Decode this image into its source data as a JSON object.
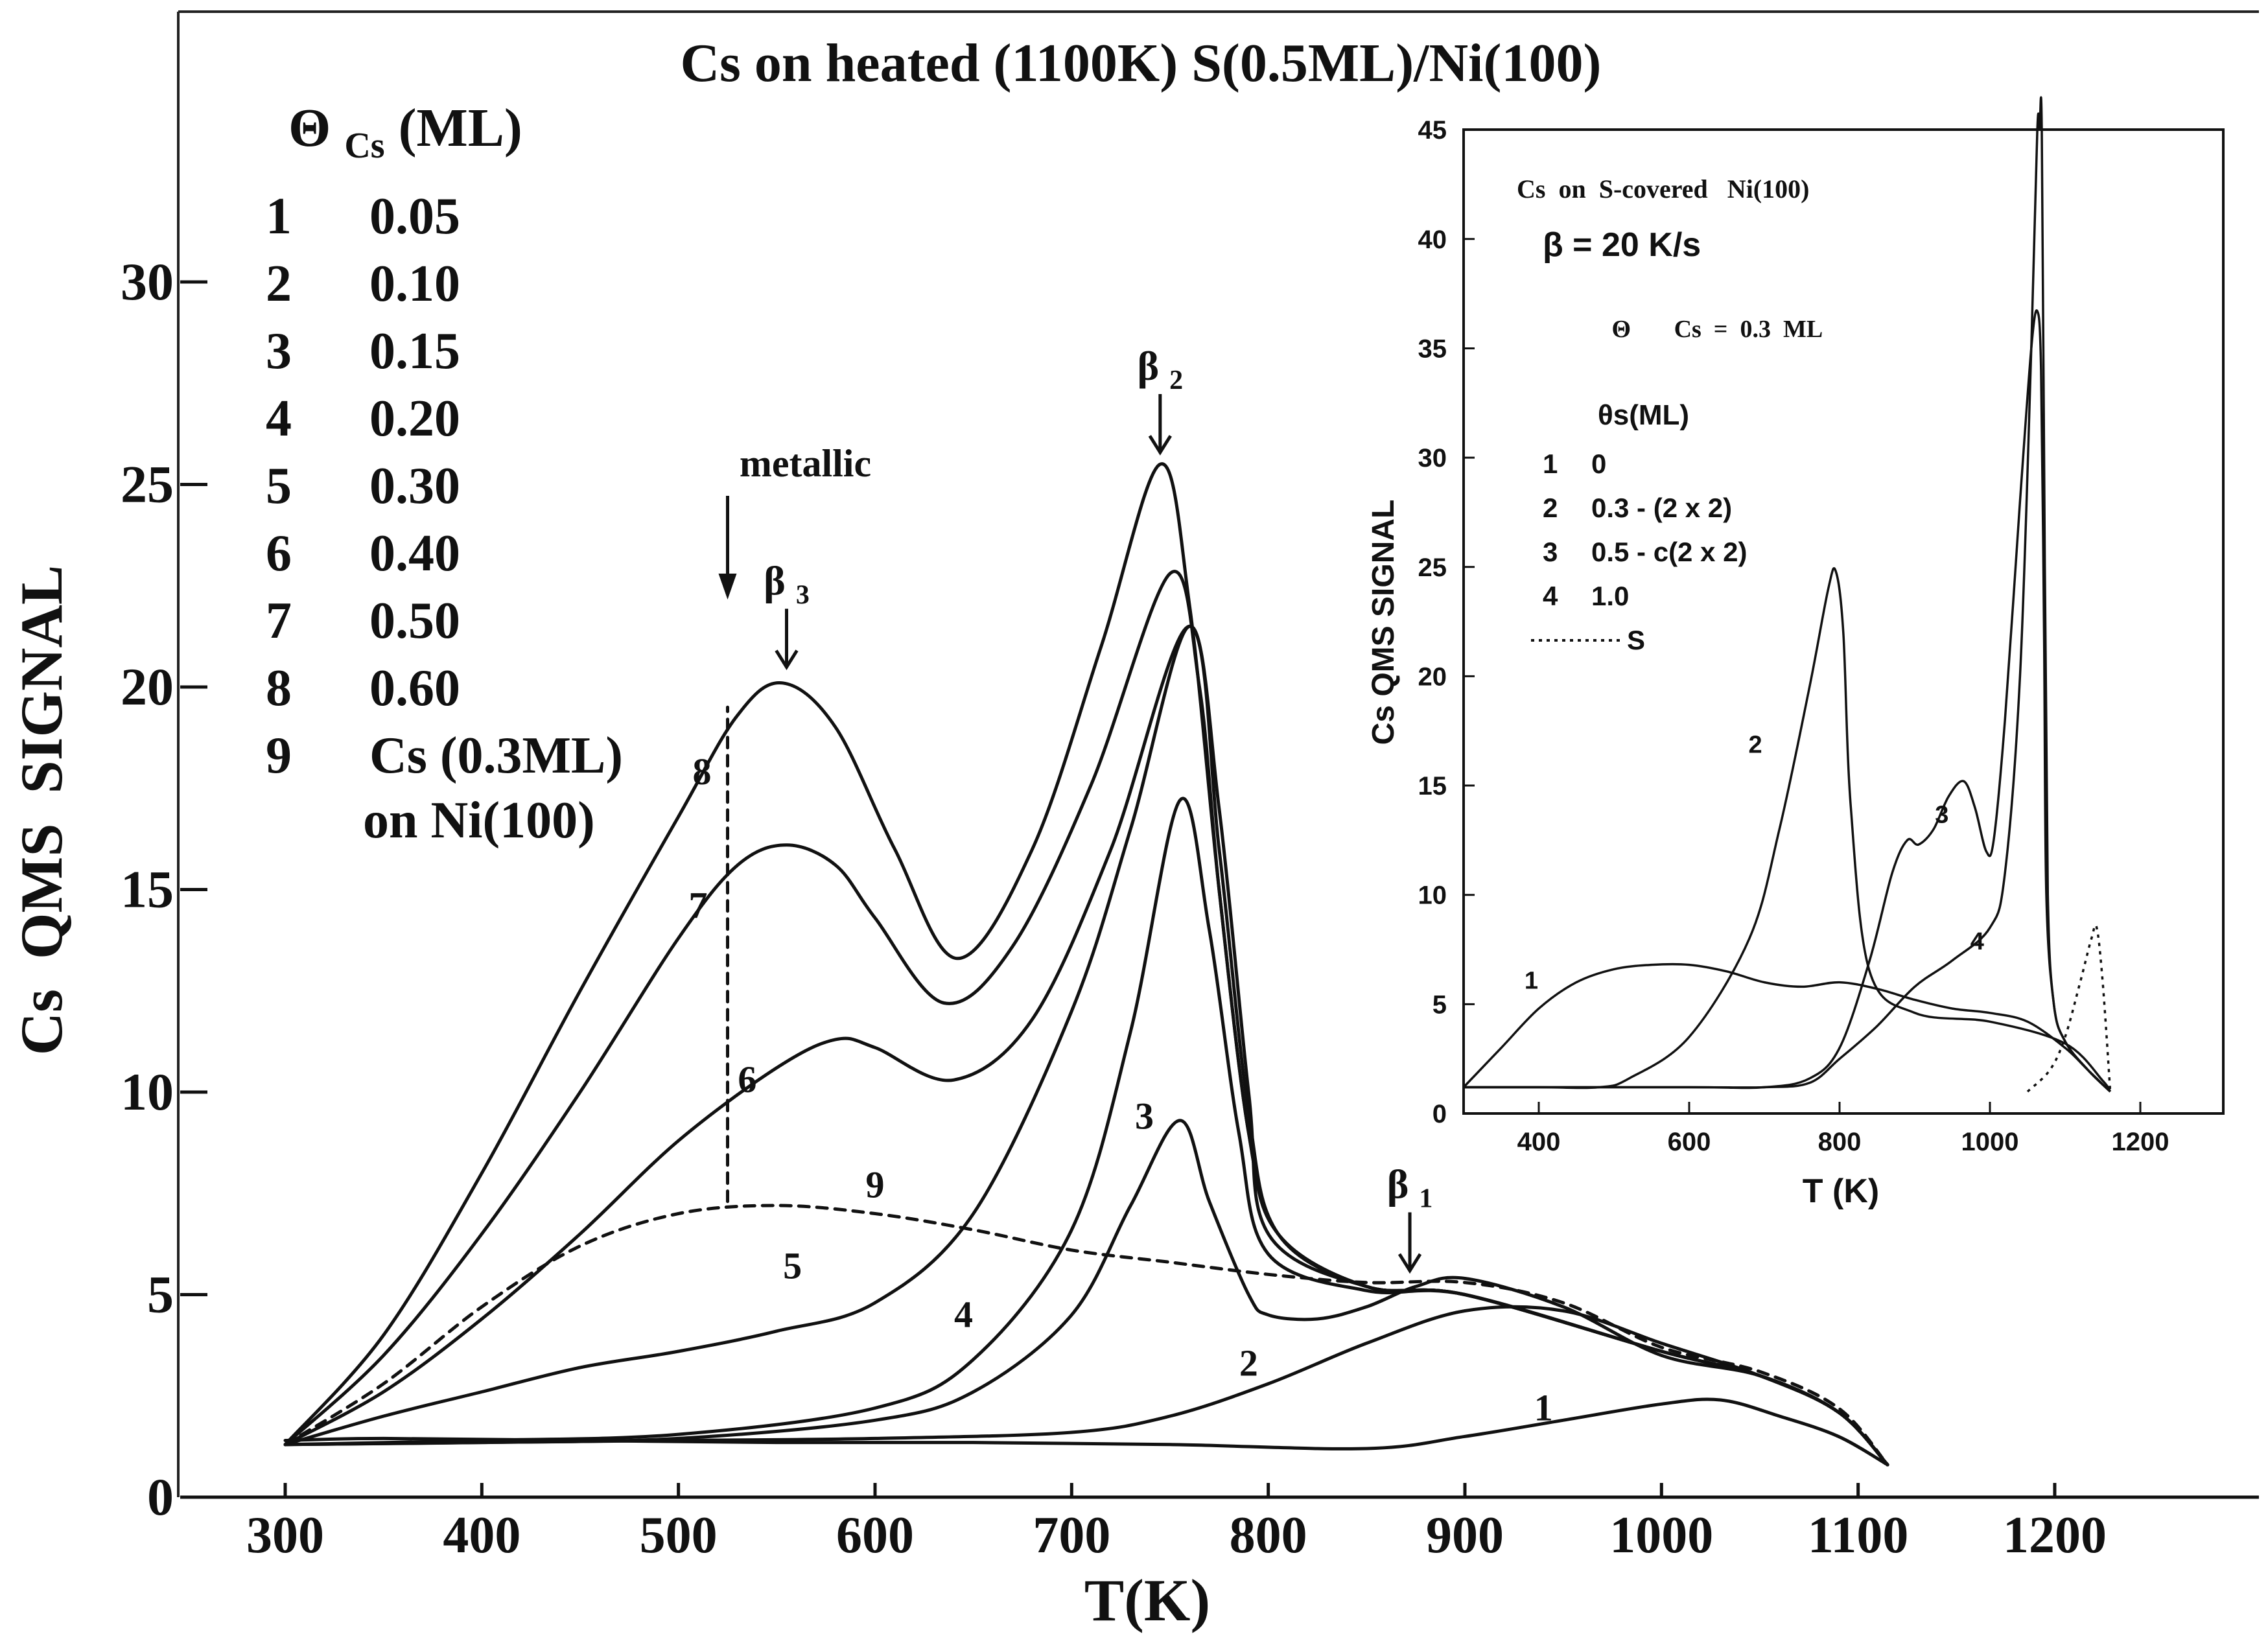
{
  "chart_data": [
    {
      "type": "line",
      "title": "Cs on heated (1100K) S(0.5ML)/Ni(100)",
      "xlabel": "T(K)",
      "ylabel": "Cs  QMS  SIGNAL",
      "xlim": [
        250,
        1300
      ],
      "ylim": [
        0,
        36
      ],
      "xticks": [
        "300",
        "400",
        "500",
        "600",
        "700",
        "800",
        "900",
        "1000",
        "1100",
        "1200"
      ],
      "yticks": [
        "0",
        "5",
        "10",
        "15",
        "20",
        "25",
        "30"
      ],
      "legend_header": "Cs (ML)",
      "legend_header_symbol": "Θ",
      "legend": [
        {
          "id": "1",
          "value": "0.05"
        },
        {
          "id": "2",
          "value": "0.10"
        },
        {
          "id": "3",
          "value": "0.15"
        },
        {
          "id": "4",
          "value": "0.20"
        },
        {
          "id": "5",
          "value": "0.30"
        },
        {
          "id": "6",
          "value": "0.40"
        },
        {
          "id": "7",
          "value": "0.50"
        },
        {
          "id": "8",
          "value": "0.60"
        },
        {
          "id": "9",
          "value": "Cs (0.3ML)",
          "value2": "on Ni(100)"
        }
      ],
      "annotations": {
        "metallic": {
          "text": "metallic",
          "x": 525,
          "y": 7.3
        },
        "beta3": {
          "text": "β",
          "sub": "3",
          "x": 555,
          "y": 20.3
        },
        "beta2": {
          "text": "β",
          "sub": "2",
          "x": 745,
          "y": 25.6
        },
        "beta1": {
          "text": "β",
          "sub": "1",
          "x": 872,
          "y": 5.4
        }
      },
      "series": [
        {
          "name": "1",
          "style": "solid",
          "label_at": [
            940,
            1.9
          ],
          "x": [
            300,
            350,
            450,
            550,
            650,
            750,
            850,
            900,
            950,
            1000,
            1030,
            1060,
            1090,
            1115
          ],
          "y": [
            1.4,
            1.45,
            1.4,
            1.35,
            1.35,
            1.3,
            1.2,
            1.5,
            1.9,
            2.3,
            2.4,
            2.0,
            1.5,
            0.8
          ]
        },
        {
          "name": "2",
          "style": "solid",
          "label_at": [
            790,
            3.0
          ],
          "x": [
            300,
            400,
            500,
            600,
            700,
            750,
            800,
            850,
            900,
            950,
            1000,
            1050,
            1090,
            1115
          ],
          "y": [
            1.3,
            1.35,
            1.4,
            1.45,
            1.6,
            2.0,
            2.8,
            3.8,
            4.6,
            4.6,
            3.8,
            3.0,
            2.1,
            0.8
          ]
        },
        {
          "name": "3",
          "style": "solid",
          "label_at": [
            737,
            9.1
          ],
          "x": [
            300,
            400,
            500,
            600,
            650,
            700,
            730,
            755,
            770,
            790,
            800,
            825,
            850,
            875,
            900,
            950,
            1000,
            1050,
            1090,
            1115
          ],
          "y": [
            1.3,
            1.35,
            1.45,
            1.9,
            2.6,
            4.5,
            7.2,
            9.3,
            7.3,
            5.0,
            4.5,
            4.4,
            4.7,
            5.2,
            5.4,
            4.7,
            3.5,
            3.0,
            2.1,
            0.8
          ]
        },
        {
          "name": "4",
          "style": "solid",
          "label_at": [
            645,
            4.2
          ],
          "x": [
            300,
            400,
            500,
            600,
            650,
            700,
            730,
            755,
            770,
            785,
            800,
            850,
            900,
            1000,
            1050,
            1090,
            1115
          ],
          "y": [
            1.3,
            1.4,
            1.55,
            2.2,
            3.4,
            6.6,
            11.5,
            17.2,
            14.0,
            9.0,
            6.0,
            5.1,
            5.0,
            3.6,
            3.0,
            2.1,
            0.8
          ]
        },
        {
          "name": "5",
          "style": "solid",
          "label_at": [
            558,
            5.4
          ],
          "x": [
            300,
            350,
            400,
            450,
            500,
            550,
            600,
            650,
            700,
            730,
            760,
            775,
            790,
            800,
            850,
            900,
            1000,
            1050,
            1090,
            1115
          ],
          "y": [
            1.3,
            2.0,
            2.6,
            3.2,
            3.6,
            4.1,
            4.8,
            7.0,
            12.0,
            16.5,
            21.5,
            17.0,
            10.0,
            6.5,
            5.2,
            5.0,
            3.6,
            3.0,
            2.1,
            0.8
          ]
        },
        {
          "name": "6",
          "style": "solid",
          "label_at": [
            535,
            10.0
          ],
          "x": [
            300,
            350,
            400,
            450,
            500,
            550,
            580,
            600,
            640,
            680,
            720,
            760,
            775,
            790,
            805,
            850,
            900,
            1000,
            1050,
            1090,
            1115
          ],
          "y": [
            1.3,
            2.6,
            4.4,
            6.5,
            8.8,
            10.6,
            11.3,
            11.1,
            10.3,
            11.8,
            16.0,
            21.5,
            16.0,
            9.5,
            6.5,
            5.2,
            5.0,
            3.6,
            3.0,
            2.1,
            0.8
          ]
        },
        {
          "name": "7",
          "style": "solid",
          "label_at": [
            510,
            14.3
          ],
          "x": [
            300,
            350,
            400,
            450,
            500,
            530,
            555,
            580,
            600,
            635,
            670,
            710,
            750,
            765,
            775,
            790,
            805,
            850,
            900,
            1000,
            1050,
            1090,
            1115
          ],
          "y": [
            1.3,
            3.5,
            6.5,
            10.0,
            13.8,
            15.6,
            16.1,
            15.6,
            14.3,
            12.2,
            13.6,
            17.6,
            22.8,
            20.0,
            15.0,
            9.0,
            6.5,
            5.2,
            5.0,
            3.6,
            3.0,
            2.1,
            0.8
          ]
        },
        {
          "name": "8",
          "style": "solid",
          "label_at": [
            512,
            17.6
          ],
          "x": [
            300,
            350,
            400,
            450,
            500,
            530,
            553,
            580,
            610,
            642,
            680,
            715,
            745,
            760,
            775,
            790,
            805,
            850,
            900,
            1000,
            1050,
            1090,
            1115
          ],
          "y": [
            1.3,
            4.0,
            8.0,
            12.5,
            16.8,
            19.3,
            20.1,
            19.0,
            16.0,
            13.3,
            16.0,
            21.0,
            25.5,
            22.0,
            15.0,
            9.0,
            6.5,
            5.2,
            5.0,
            3.6,
            3.0,
            2.1,
            0.8
          ]
        },
        {
          "name": "9",
          "style": "dashed",
          "label_at": [
            600,
            7.4
          ],
          "x": [
            300,
            350,
            400,
            450,
            500,
            550,
            600,
            650,
            700,
            750,
            800,
            850,
            900,
            950,
            1000,
            1050,
            1090,
            1115
          ],
          "y": [
            1.3,
            2.8,
            4.7,
            6.2,
            7.0,
            7.2,
            7.0,
            6.6,
            6.1,
            5.8,
            5.5,
            5.3,
            5.3,
            4.8,
            3.7,
            3.1,
            2.2,
            0.8
          ]
        }
      ]
    },
    {
      "type": "line",
      "title": "Cs  on  S-covered   Ni(100)",
      "rate": "β = 20 K/s",
      "coverage_symbol": "Θ",
      "coverage_label": "Cs  =  0.3  ML",
      "xlabel": "T (K)",
      "ylabel": "Cs QMS SIGNAL",
      "xlim": [
        300,
        1310
      ],
      "ylim": [
        0,
        45
      ],
      "xticks": [
        "400",
        "600",
        "800",
        "1000",
        "1200"
      ],
      "yticks": [
        "0",
        "5",
        "10",
        "15",
        "20",
        "25",
        "30",
        "35",
        "40",
        "45"
      ],
      "legend_header": "θs(ML)",
      "legend": [
        {
          "id": "1",
          "value": "0"
        },
        {
          "id": "2",
          "value": "0.3 - (2 x 2)"
        },
        {
          "id": "3",
          "value": "0.5 - c(2 x 2)"
        },
        {
          "id": "4",
          "value": "1.0"
        },
        {
          "id": "",
          "value": "S"
        }
      ],
      "series": [
        {
          "name": "1",
          "style": "solid",
          "label_at": [
            390,
            5.7
          ],
          "x": [
            300,
            350,
            400,
            450,
            500,
            550,
            600,
            650,
            700,
            750,
            800,
            850,
            900,
            950,
            1000,
            1050,
            1100,
            1130,
            1160
          ],
          "y": [
            1.2,
            3.0,
            4.8,
            6.0,
            6.6,
            6.8,
            6.8,
            6.5,
            6.0,
            5.8,
            6.0,
            5.7,
            5.2,
            4.8,
            4.6,
            4.2,
            3.0,
            2.0,
            1.0
          ]
        },
        {
          "name": "2",
          "style": "solid",
          "label_at": [
            688,
            16.5
          ],
          "x": [
            300,
            400,
            480,
            520,
            600,
            680,
            720,
            760,
            785,
            795,
            805,
            815,
            840,
            900,
            1000,
            1100,
            1150,
            1160
          ],
          "y": [
            1.2,
            1.2,
            1.2,
            1.6,
            3.5,
            8.0,
            13.0,
            19.5,
            24.0,
            24.8,
            22.0,
            14.0,
            6.5,
            4.6,
            4.2,
            3.2,
            1.5,
            1.0
          ]
        },
        {
          "name": "3",
          "style": "solid",
          "label_at": [
            936,
            13.3
          ],
          "x": [
            300,
            600,
            700,
            760,
            800,
            840,
            870,
            890,
            905,
            925,
            945,
            965,
            980,
            995,
            1005,
            1020,
            1040,
            1055,
            1063,
            1068,
            1072,
            1075,
            1085,
            1100,
            1130,
            1160
          ],
          "y": [
            1.2,
            1.2,
            1.2,
            1.6,
            3.0,
            7.0,
            11.0,
            12.5,
            12.3,
            13.0,
            14.5,
            15.2,
            14.0,
            12.0,
            12.5,
            18.0,
            28.0,
            35.0,
            36.7,
            34.0,
            22.0,
            10.0,
            5.0,
            3.3,
            2.0,
            1.0
          ]
        },
        {
          "name": "4",
          "style": "solid",
          "label_at": [
            983,
            7.5
          ],
          "x": [
            300,
            600,
            700,
            760,
            800,
            850,
            900,
            950,
            1000,
            1020,
            1040,
            1055,
            1063,
            1066,
            1069,
            1073,
            1077,
            1085,
            1100,
            1130,
            1160
          ],
          "y": [
            1.2,
            1.2,
            1.2,
            1.4,
            2.5,
            4.0,
            5.8,
            7.0,
            8.5,
            11.0,
            20.0,
            35.0,
            45.0,
            46.0,
            45.0,
            25.0,
            10.0,
            5.0,
            3.3,
            2.0,
            1.0
          ]
        },
        {
          "name": "S",
          "style": "dotted",
          "x": [
            1050,
            1080,
            1100,
            1120,
            1135,
            1142,
            1150,
            1160
          ],
          "y": [
            1.0,
            2.0,
            3.5,
            6.0,
            8.0,
            8.5,
            6.0,
            1.0
          ]
        }
      ]
    }
  ]
}
